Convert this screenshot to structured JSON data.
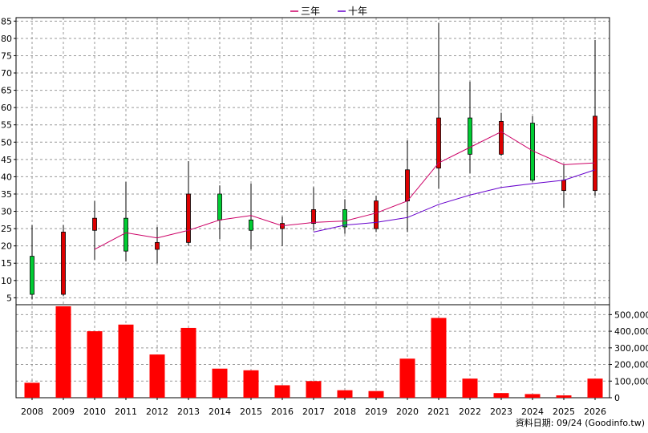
{
  "chart_data": {
    "type": "candlestick",
    "categories": [
      "2008",
      "2009",
      "2010",
      "2011",
      "2012",
      "2013",
      "2014",
      "2015",
      "2016",
      "2017",
      "2018",
      "2019",
      "2020",
      "2021",
      "2022",
      "2023",
      "2024",
      "2025",
      "2026"
    ],
    "candles": [
      {
        "open": 6.0,
        "close": 17.0,
        "high": 26.0,
        "low": 4.5
      },
      {
        "open": 24.0,
        "close": 6.0,
        "high": 26.0,
        "low": 5.5
      },
      {
        "open": 28.0,
        "close": 24.5,
        "high": 33.0,
        "low": 16.0
      },
      {
        "open": 18.5,
        "close": 28.0,
        "high": 38.5,
        "low": 15.5
      },
      {
        "open": 21.0,
        "close": 19.0,
        "high": 25.5,
        "low": 15.0
      },
      {
        "open": 35.0,
        "close": 21.0,
        "high": 44.5,
        "low": 20.0
      },
      {
        "open": 27.5,
        "close": 35.0,
        "high": 37.5,
        "low": 22.0
      },
      {
        "open": 24.5,
        "close": 27.5,
        "high": 38.0,
        "low": 19.0
      },
      {
        "open": 26.5,
        "close": 25.0,
        "high": 28.5,
        "low": 20.0
      },
      {
        "open": 30.5,
        "close": 26.5,
        "high": 37.0,
        "low": 24.5
      },
      {
        "open": 25.5,
        "close": 30.5,
        "high": 33.5,
        "low": 23.5
      },
      {
        "open": 33.0,
        "close": 25.0,
        "high": 34.5,
        "low": 24.0
      },
      {
        "open": 42.0,
        "close": 33.0,
        "high": 50.5,
        "low": 24.0
      },
      {
        "open": 57.0,
        "close": 42.5,
        "high": 84.5,
        "low": 36.5
      },
      {
        "open": 46.5,
        "close": 57.0,
        "high": 67.5,
        "low": 41.0
      },
      {
        "open": 56.0,
        "close": 46.5,
        "high": 58.5,
        "low": 46.0
      },
      {
        "open": 39.0,
        "close": 55.5,
        "high": 57.5,
        "low": 38.5
      },
      {
        "open": 39.0,
        "close": 36.0,
        "high": 43.5,
        "low": 31.0
      },
      {
        "open": 57.5,
        "close": 36.0,
        "high": 79.5,
        "low": 34.5
      }
    ],
    "series": [
      {
        "name": "三年",
        "color": "#cc0066",
        "values": [
          null,
          null,
          19.0,
          23.8,
          22.3,
          24.5,
          27.5,
          28.8,
          25.8,
          26.8,
          27.2,
          29.5,
          33.0,
          44.0,
          48.5,
          53.0,
          47.5,
          43.5,
          44.0
        ]
      },
      {
        "name": "十年",
        "color": "#6600cc",
        "values": [
          null,
          null,
          null,
          null,
          null,
          null,
          null,
          null,
          null,
          24.0,
          26.0,
          26.8,
          28.2,
          32.0,
          34.7,
          36.9,
          38.0,
          39.0,
          42.0
        ]
      }
    ],
    "volume": [
      90000,
      550000,
      400000,
      440000,
      260000,
      420000,
      175000,
      165000,
      75000,
      100000,
      45000,
      40000,
      235000,
      480000,
      115000,
      28000,
      22000,
      14000,
      115000
    ],
    "y_ticks": [
      5,
      10,
      15,
      20,
      25,
      30,
      35,
      40,
      45,
      50,
      55,
      60,
      65,
      70,
      75,
      80,
      85
    ],
    "ylim": [
      3,
      86
    ],
    "volume_ticks": [
      "0",
      "100,000",
      "200,000",
      "300,000",
      "400,000",
      "500,000"
    ],
    "volume_tick_values": [
      0,
      100000,
      200000,
      300000,
      400000,
      500000
    ],
    "volume_max": 550000,
    "legend": [
      {
        "label": "三年",
        "color": "#cc0066"
      },
      {
        "label": "十年",
        "color": "#6600cc"
      }
    ],
    "legend_position": "top-center",
    "source_text": "資料日期: 09/24  (Goodinfo.tw)",
    "colors": {
      "up": "#00cc33",
      "down": "#dd0000",
      "volume": "#ff0000",
      "grid": "#999999"
    },
    "grid": true
  }
}
